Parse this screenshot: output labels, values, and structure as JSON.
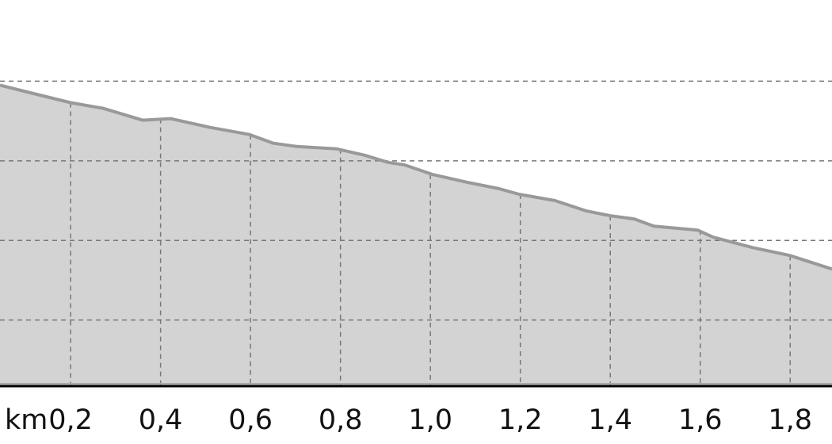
{
  "chart_data": {
    "type": "area",
    "title": "",
    "xlabel": "km",
    "ylabel": "",
    "xlim": [
      0.043,
      1.893
    ],
    "ylim": [
      0.17,
      5.02
    ],
    "grid": true,
    "x_ticks": [
      0.2,
      0.4,
      0.6,
      0.8,
      1.0,
      1.2,
      1.4,
      1.6,
      1.8
    ],
    "x_tick_labels": [
      "0,2",
      "0,4",
      "0,6",
      "0,8",
      "1,0",
      "1,2",
      "1,4",
      "1,6",
      "1,8"
    ],
    "y_gridlines": [
      1,
      2,
      3,
      4
    ],
    "x": [
      0.043,
      0.114,
      0.2,
      0.272,
      0.36,
      0.422,
      0.51,
      0.598,
      0.651,
      0.704,
      0.792,
      0.854,
      0.906,
      0.942,
      1.004,
      1.082,
      1.153,
      1.197,
      1.277,
      1.347,
      1.4,
      1.453,
      1.497,
      1.594,
      1.629,
      1.717,
      1.8,
      1.893
    ],
    "y": [
      3.95,
      3.85,
      3.73,
      3.66,
      3.51,
      3.53,
      3.42,
      3.33,
      3.22,
      3.18,
      3.15,
      3.07,
      2.98,
      2.95,
      2.83,
      2.73,
      2.65,
      2.58,
      2.5,
      2.37,
      2.31,
      2.27,
      2.18,
      2.13,
      2.04,
      1.91,
      1.81,
      1.64
    ],
    "colors": {
      "fill": "#d3d3d3",
      "line": "#999999",
      "grid": "#777777",
      "axis": "#000000"
    }
  }
}
